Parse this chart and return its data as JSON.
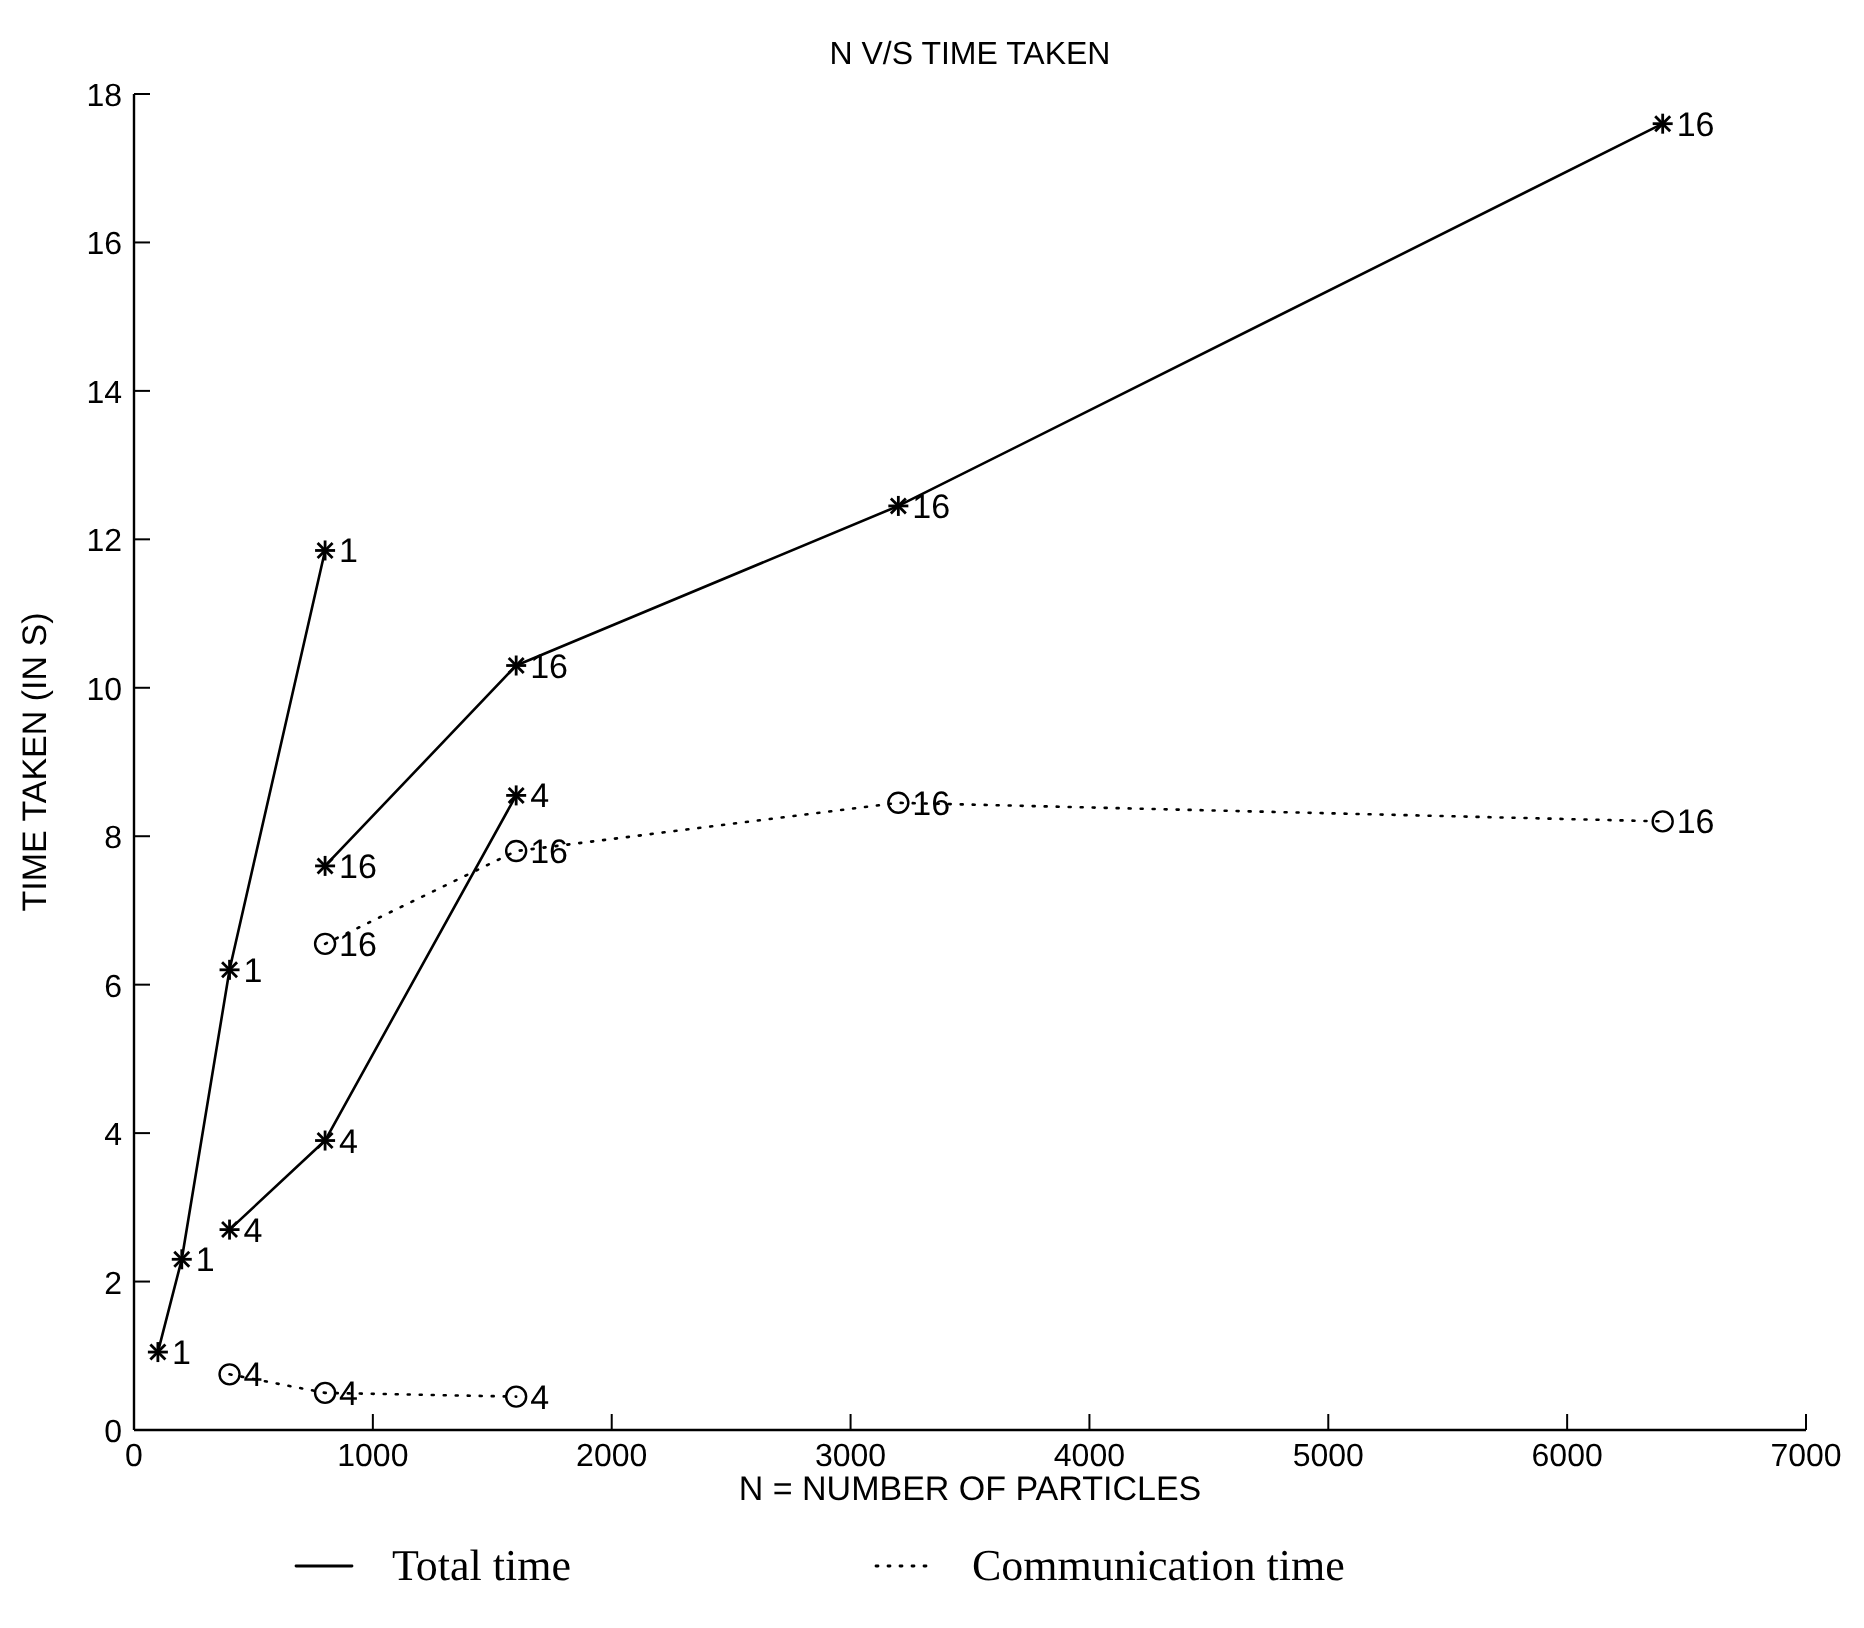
{
  "chart_data": {
    "type": "line",
    "title": "N V/S TIME TAKEN",
    "xlabel": "N = NUMBER OF PARTICLES",
    "ylabel": "TIME TAKEN (IN S)",
    "xlim": [
      0,
      7000
    ],
    "xticks": [
      0,
      1000,
      2000,
      3000,
      4000,
      5000,
      6000,
      7000
    ],
    "ylim": [
      0,
      18
    ],
    "yticks": [
      0,
      2,
      4,
      6,
      8,
      10,
      12,
      14,
      16,
      18
    ],
    "grid": false,
    "legend": "bottom",
    "series": [
      {
        "name": "Total time",
        "color": "#000000",
        "marker": "cross",
        "line_style": "solid",
        "x": [
          100,
          200,
          400,
          800
        ],
        "values": [
          1.05,
          2.3,
          6.2,
          11.85
        ]
      },
      {
        "color": "#000000",
        "marker": "cross",
        "line_style": "solid",
        "x": [
          400,
          800,
          1600
        ],
        "values": [
          2.7,
          3.9,
          8.55
        ]
      },
      {
        "color": "#000000",
        "marker": "cross",
        "line_style": "solid",
        "x": [
          800,
          1600,
          3200,
          6400
        ],
        "values": [
          7.6,
          10.3,
          12.45,
          17.6
        ]
      },
      {
        "name": "Communication time",
        "color": "#000000",
        "marker": "circle",
        "line_style": "dotted",
        "x": [
          400,
          800,
          1600
        ],
        "values": [
          0.75,
          0.5,
          0.45
        ]
      },
      {
        "color": "#000000",
        "marker": "circle",
        "line_style": "dotted",
        "x": [
          800,
          1600,
          3200,
          6400
        ],
        "values": [
          6.55,
          7.8,
          8.45,
          8.2
        ]
      }
    ],
    "annotations": [
      {
        "text": "1",
        "x": 100,
        "y": 1.05
      },
      {
        "text": "1",
        "x": 200,
        "y": 2.3
      },
      {
        "text": "1",
        "x": 400,
        "y": 6.2
      },
      {
        "text": "1",
        "x": 800,
        "y": 11.85
      },
      {
        "text": "4",
        "x": 400,
        "y": 2.7
      },
      {
        "text": "4",
        "x": 800,
        "y": 3.9
      },
      {
        "text": "4",
        "x": 1600,
        "y": 8.55
      },
      {
        "text": "16",
        "x": 800,
        "y": 7.6
      },
      {
        "text": "16",
        "x": 1600,
        "y": 10.3
      },
      {
        "text": "16",
        "x": 3200,
        "y": 12.45
      },
      {
        "text": "16",
        "x": 6400,
        "y": 17.6
      },
      {
        "text": "4",
        "x": 400,
        "y": 0.75
      },
      {
        "text": "4",
        "x": 800,
        "y": 0.5
      },
      {
        "text": "4",
        "x": 1600,
        "y": 0.45
      },
      {
        "text": "16",
        "x": 800,
        "y": 6.55
      },
      {
        "text": "16",
        "x": 1600,
        "y": 7.8
      },
      {
        "text": "16",
        "x": 3200,
        "y": 8.45
      },
      {
        "text": "16",
        "x": 6400,
        "y": 8.2
      }
    ]
  }
}
